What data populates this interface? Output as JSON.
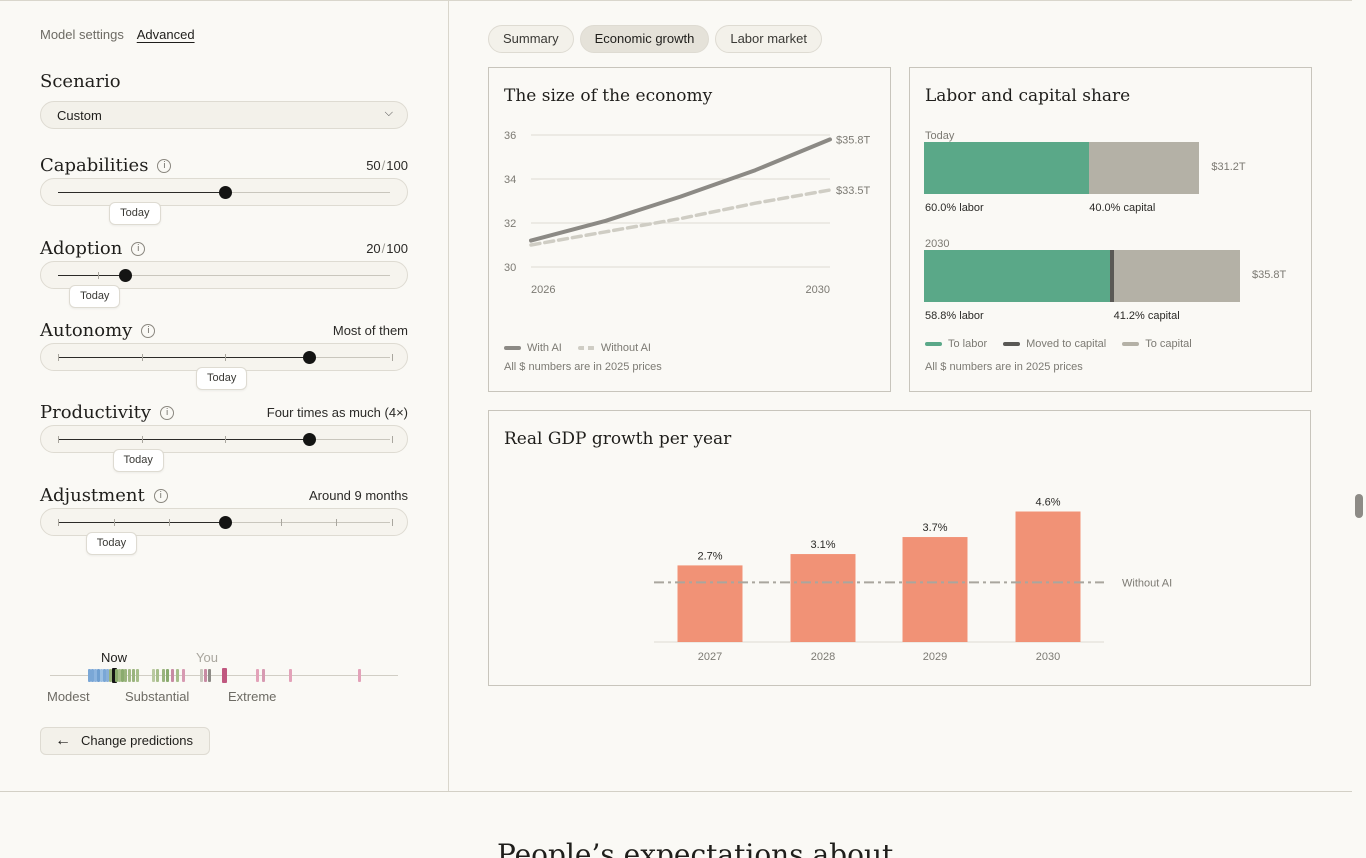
{
  "sidebar": {
    "tabs": [
      "Model settings",
      "Advanced"
    ],
    "scenario_label": "Scenario",
    "scenario_value": "Custom",
    "today_label": "Today",
    "params": {
      "capabilities": {
        "label": "Capabilities",
        "current": "50",
        "max": "100",
        "level": 0.5,
        "today": 0.24
      },
      "adoption": {
        "label": "Adoption",
        "current": "20",
        "max": "100",
        "level": 0.2,
        "today": 0.12
      },
      "autonomy": {
        "label": "Autonomy",
        "value": "Most of them",
        "level": 0.75,
        "today": 0.5
      },
      "productivity": {
        "label": "Productivity",
        "value": "Four times as much (4×)",
        "level": 0.75,
        "today": 0.25
      },
      "adjustment": {
        "label": "Adjustment",
        "value": "Around 9 months",
        "level": 0.5,
        "today": 0.17
      }
    },
    "strip": {
      "now": "Now",
      "you": "You",
      "scale": [
        "Modest",
        "Substantial",
        "Extreme"
      ]
    },
    "change_button": "Change predictions"
  },
  "tabs": [
    "Summary",
    "Economic growth",
    "Labor market"
  ],
  "economy_chart": {
    "title": "The size of the economy",
    "note": "All $ numbers are in 2025 prices",
    "legend": [
      "With AI",
      "Without AI"
    ],
    "end_labels": [
      "$35.8T",
      "$33.5T"
    ],
    "colors": {
      "with_ai": "#8c8a85",
      "without_ai": "#cfcdc4"
    }
  },
  "share_chart": {
    "title": "Labor and capital share",
    "note": "All $ numbers are in 2025 prices",
    "rows": [
      {
        "label": "Today",
        "labor": "60.0% labor",
        "capital": "40.0% capital",
        "total": "$31.2T",
        "labor_share": 0.6,
        "moved_share": 0.0,
        "total_value": 31.2
      },
      {
        "label": "2030",
        "labor": "58.8% labor",
        "capital": "41.2% capital",
        "total": "$35.8T",
        "labor_share": 0.588,
        "moved_share": 0.012,
        "total_value": 35.8
      }
    ],
    "legend": [
      "To labor",
      "Moved to capital",
      "To capital"
    ],
    "colors": {
      "labor": "#5aa888",
      "moved": "#5a5955",
      "capital": "#b4b1a6"
    }
  },
  "gdp_chart": {
    "title": "Real GDP growth per year",
    "baseline_label": "Without AI",
    "color": "#f0896a"
  },
  "chart_data": [
    {
      "type": "line",
      "x": [
        2026,
        2027,
        2028,
        2029,
        2030
      ],
      "series": [
        {
          "name": "With AI",
          "values": [
            31.2,
            32.1,
            33.2,
            34.4,
            35.8
          ]
        },
        {
          "name": "Without AI",
          "values": [
            31.0,
            31.6,
            32.2,
            32.9,
            33.5
          ]
        }
      ],
      "yticks": [
        30,
        32,
        34,
        36
      ],
      "xticks": [
        2026,
        2030
      ],
      "ylim": [
        30,
        36
      ]
    },
    {
      "type": "bar",
      "categories": [
        "2027",
        "2028",
        "2029",
        "2030"
      ],
      "values": [
        2.7,
        3.1,
        3.7,
        4.6
      ],
      "labels": [
        "2.7%",
        "3.1%",
        "3.7%",
        "4.6%"
      ],
      "baseline": 2.1,
      "ylim": [
        0,
        4.9
      ]
    }
  ],
  "footer": {
    "headline": "People’s expectations about"
  }
}
